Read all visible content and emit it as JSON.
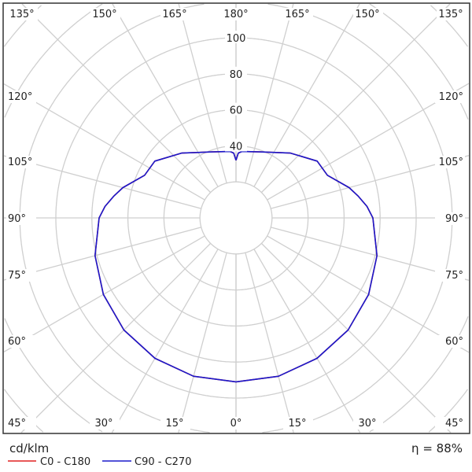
{
  "chart_data": {
    "type": "polar-line",
    "unit_label": "cd/klm",
    "efficiency_label": "η = 88%",
    "radial_ticks": [
      20,
      40,
      60,
      80,
      100,
      120,
      140,
      160,
      180
    ],
    "radial_tick_labels": [
      "40",
      "60",
      "80",
      "100"
    ],
    "angle_labels_top": [
      "135°",
      "150°",
      "165°",
      "180°",
      "165°",
      "150°",
      "135°"
    ],
    "angle_labels_left": [
      "120°",
      "105°",
      "90°",
      "75°",
      "60°",
      "45°"
    ],
    "angle_labels_right": [
      "120°",
      "105°",
      "90°",
      "75°",
      "60°",
      "45°"
    ],
    "angle_labels_bottom": [
      "30°",
      "15°",
      "0°",
      "15°",
      "30°"
    ],
    "grid": true,
    "series": [
      {
        "name": "C0 - C180",
        "color": "#e02020",
        "gamma": [
          0,
          15,
          30,
          45,
          60,
          75,
          90,
          95,
          100,
          105,
          115,
          125,
          140,
          160,
          175,
          178,
          180
        ],
        "values": [
          91,
          91,
          90,
          88,
          85,
          81,
          76,
          73,
          69,
          65,
          56,
          55,
          47,
          39,
          37,
          36,
          32
        ]
      },
      {
        "name": "C90 - C270",
        "color": "#1a1acc",
        "gamma": [
          0,
          15,
          30,
          45,
          60,
          75,
          90,
          95,
          100,
          105,
          115,
          125,
          140,
          160,
          175,
          178,
          180
        ],
        "values": [
          91,
          91,
          90,
          88,
          85,
          81,
          76,
          73,
          69,
          65,
          56,
          55,
          47,
          39,
          37,
          36,
          32
        ]
      }
    ]
  }
}
